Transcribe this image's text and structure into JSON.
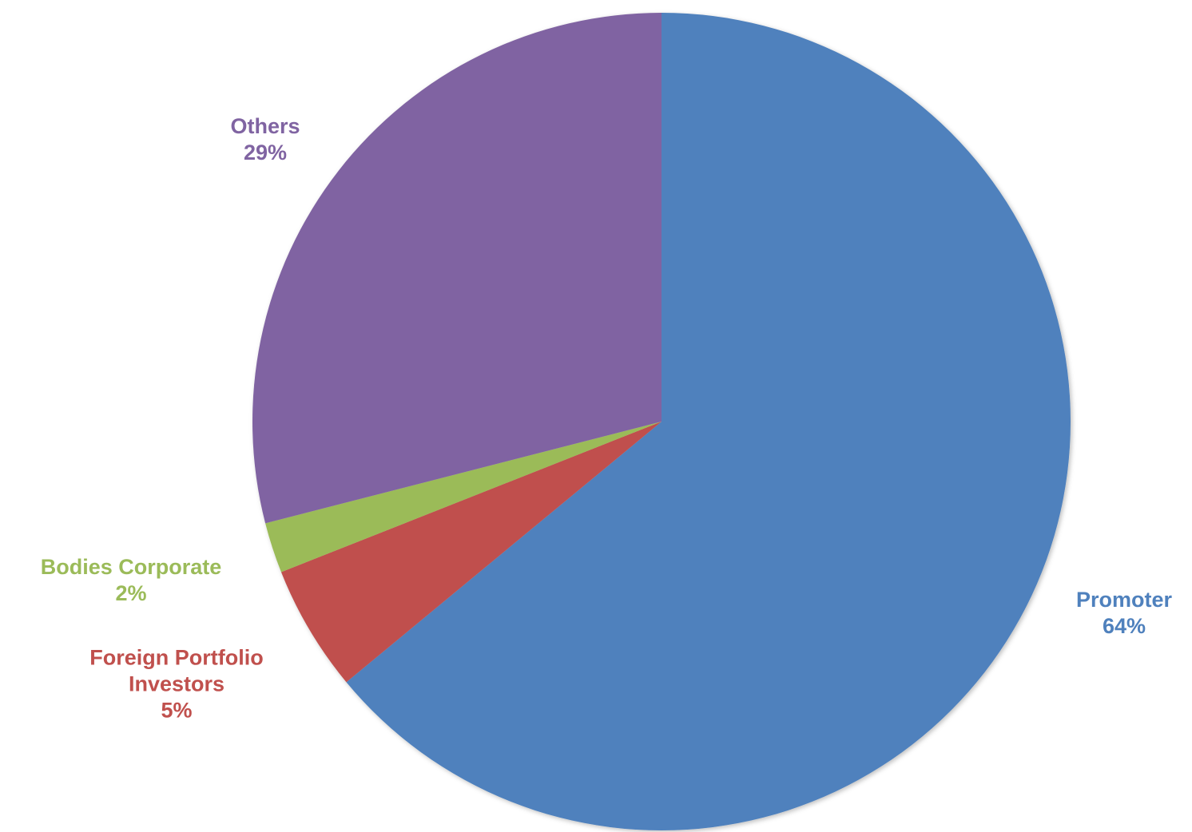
{
  "chart_data": {
    "type": "pie",
    "categories": [
      "Promoter",
      "Foreign Portfolio Investors",
      "Bodies Corporate",
      "Others"
    ],
    "values": [
      64,
      5,
      2,
      29
    ],
    "value_labels": [
      "64%",
      "5%",
      "2%",
      "29%"
    ],
    "colors": [
      "#4f81bd",
      "#c0504d",
      "#9bbb59",
      "#8064a2"
    ]
  }
}
